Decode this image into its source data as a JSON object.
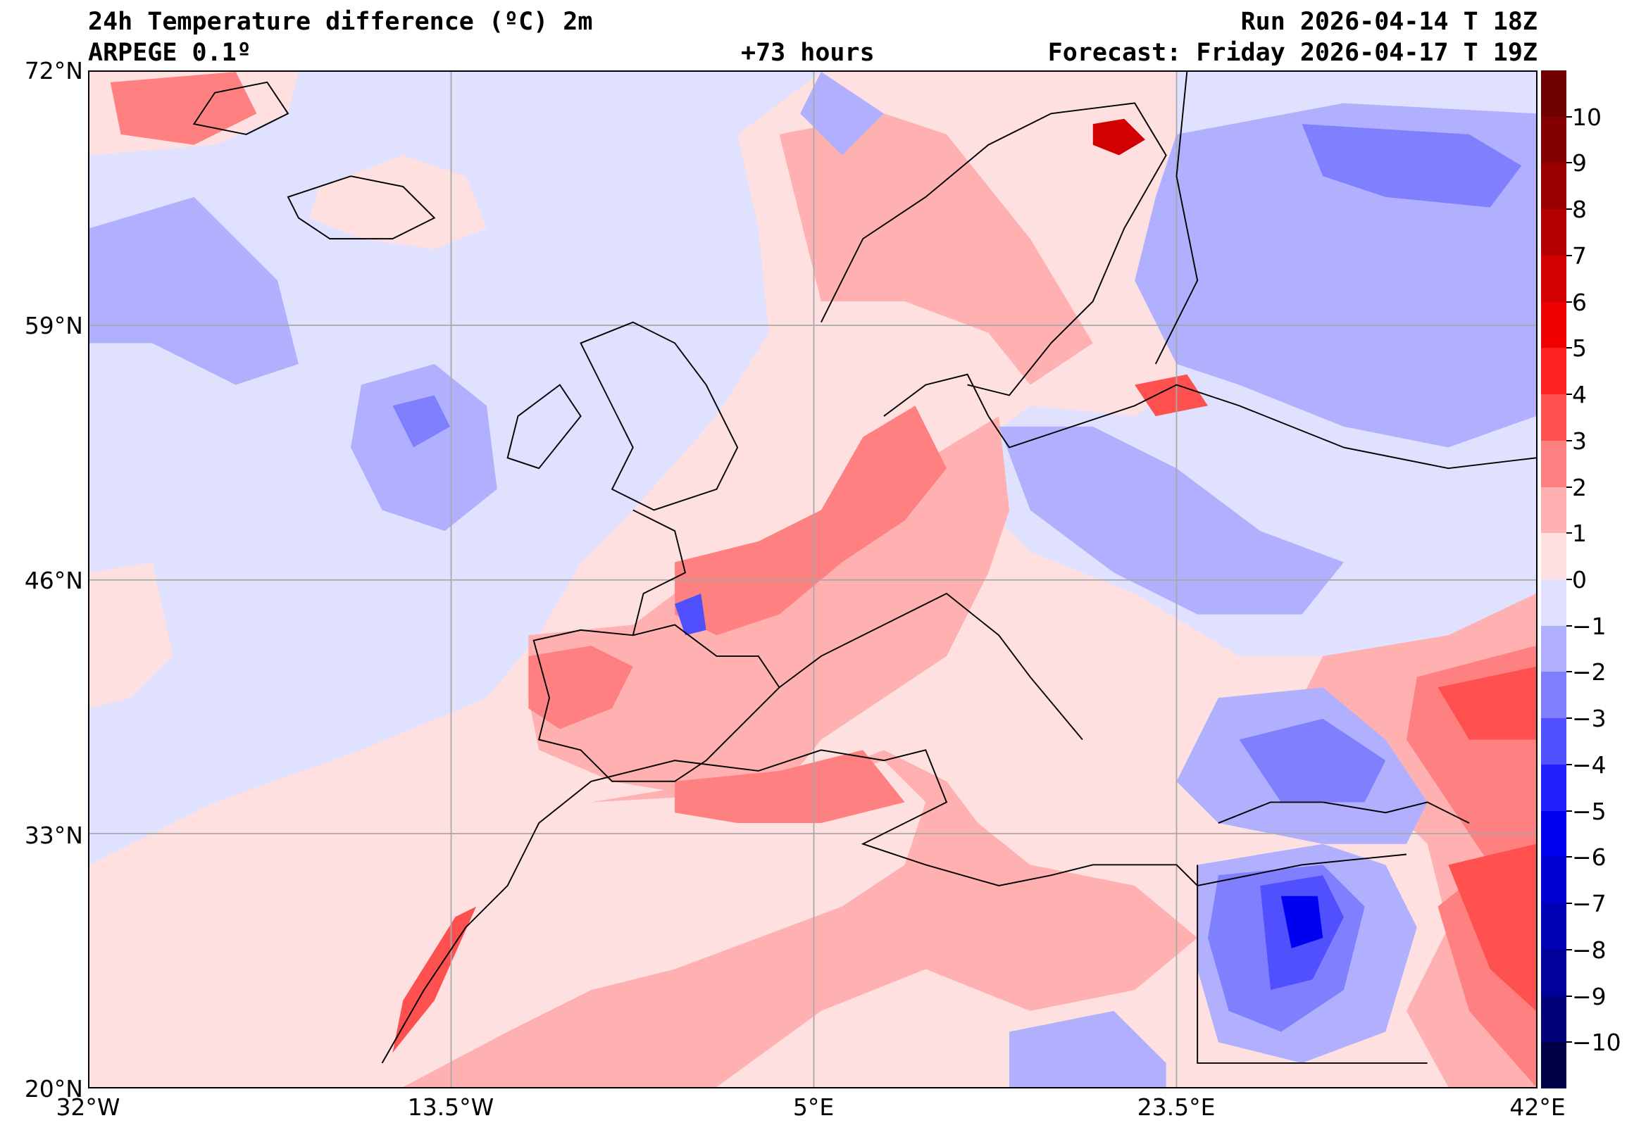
{
  "header": {
    "title": "24h Temperature difference (ºC) 2m",
    "model": "ARPEGE 0.1º",
    "lead_time": "+73 hours",
    "run": "Run 2026-04-14 T 18Z",
    "forecast": "Forecast: Friday 2026-04-17 T 19Z"
  },
  "axes": {
    "lat_labels": [
      "72°N",
      "59°N",
      "46°N",
      "33°N",
      "20°N"
    ],
    "lon_labels": [
      "32°W",
      "13.5°W",
      "5°E",
      "23.5°E",
      "42°E"
    ]
  },
  "colorbar": {
    "ticks": [
      "10",
      "9",
      "8",
      "7",
      "6",
      "5",
      "4",
      "3",
      "2",
      "1",
      "0",
      "−1",
      "−2",
      "−3",
      "−4",
      "−5",
      "−6",
      "−7",
      "−8",
      "−9",
      "−10"
    ],
    "range": [
      -11,
      11
    ],
    "colors": [
      "#6e0000",
      "#820000",
      "#9a0000",
      "#b40000",
      "#d20000",
      "#f00000",
      "#ff2020",
      "#ff5050",
      "#ff8080",
      "#ffb0b0",
      "#ffe0e0",
      "#e0e0ff",
      "#b0b0ff",
      "#8080ff",
      "#5050ff",
      "#2020ff",
      "#0000f0",
      "#0000d2",
      "#0000b4",
      "#00009a",
      "#000078",
      "#000048"
    ]
  }
}
